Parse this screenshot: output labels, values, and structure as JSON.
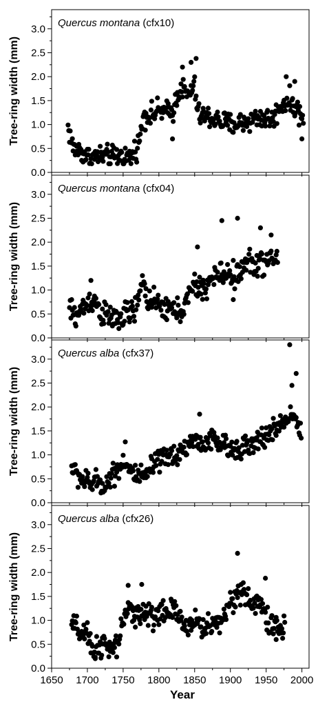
{
  "chart_data": {
    "type": "scatter",
    "layout": "vertical-stack",
    "xlabel": "Year",
    "xlim": [
      1650,
      2010
    ],
    "xticks": [
      1650,
      1700,
      1750,
      1800,
      1850,
      1900,
      1950,
      2000
    ],
    "ylabel": "Tree-ring width (mm)",
    "ylim": [
      0,
      3.4
    ],
    "yticks": [
      0.0,
      0.5,
      1.0,
      1.5,
      2.0,
      2.5,
      3.0
    ],
    "ytick_labels": [
      "0.0",
      "0.5",
      "1.0",
      "1.5",
      "2.0",
      "2.5",
      "3.0"
    ],
    "marker_color": "#000000",
    "grid": false,
    "panels": [
      {
        "species": "Quercus montana",
        "code": "(cfx10)",
        "first_year": 1673,
        "last_year": 2002,
        "segments": [
          [
            1673,
            0.95
          ],
          [
            1680,
            0.5
          ],
          [
            1690,
            0.45
          ],
          [
            1700,
            0.32
          ],
          [
            1710,
            0.32
          ],
          [
            1720,
            0.35
          ],
          [
            1730,
            0.32
          ],
          [
            1740,
            0.32
          ],
          [
            1750,
            0.35
          ],
          [
            1760,
            0.3
          ],
          [
            1770,
            0.55
          ],
          [
            1775,
            0.8
          ],
          [
            1778,
            1.2
          ],
          [
            1790,
            1.2
          ],
          [
            1800,
            1.3
          ],
          [
            1810,
            1.25
          ],
          [
            1820,
            1.3
          ],
          [
            1830,
            1.8
          ],
          [
            1840,
            1.6
          ],
          [
            1850,
            1.8
          ],
          [
            1855,
            1.2
          ],
          [
            1870,
            1.15
          ],
          [
            1890,
            1.05
          ],
          [
            1900,
            1.0
          ],
          [
            1920,
            1.05
          ],
          [
            1940,
            1.15
          ],
          [
            1960,
            1.1
          ],
          [
            1970,
            1.4
          ],
          [
            1980,
            1.5
          ],
          [
            1990,
            1.4
          ],
          [
            2002,
            1.1
          ]
        ],
        "spread": 0.18,
        "spikes": [
          [
            1833,
            2.2
          ],
          [
            1845,
            2.3
          ],
          [
            1852,
            2.38
          ],
          [
            1978,
            2.0
          ],
          [
            1990,
            1.9
          ],
          [
            2000,
            0.7
          ],
          [
            1819,
            0.7
          ]
        ]
      },
      {
        "species": "Quercus montana",
        "code": "(cfx04)",
        "first_year": 1675,
        "last_year": 1966,
        "segments": [
          [
            1675,
            0.6
          ],
          [
            1685,
            0.45
          ],
          [
            1695,
            0.65
          ],
          [
            1705,
            0.8
          ],
          [
            1712,
            0.75
          ],
          [
            1720,
            0.5
          ],
          [
            1728,
            0.45
          ],
          [
            1738,
            0.4
          ],
          [
            1748,
            0.4
          ],
          [
            1755,
            0.5
          ],
          [
            1765,
            0.55
          ],
          [
            1772,
            0.8
          ],
          [
            1778,
            1.2
          ],
          [
            1785,
            0.8
          ],
          [
            1800,
            0.65
          ],
          [
            1815,
            0.6
          ],
          [
            1830,
            0.55
          ],
          [
            1840,
            0.8
          ],
          [
            1850,
            1.1
          ],
          [
            1860,
            1.0
          ],
          [
            1880,
            1.3
          ],
          [
            1895,
            1.35
          ],
          [
            1910,
            1.3
          ],
          [
            1925,
            1.6
          ],
          [
            1940,
            1.55
          ],
          [
            1955,
            1.6
          ],
          [
            1966,
            1.7
          ]
        ],
        "spread": 0.2,
        "spikes": [
          [
            1854,
            1.9
          ],
          [
            1888,
            2.45
          ],
          [
            1910,
            2.5
          ],
          [
            1942,
            2.3
          ],
          [
            1957,
            2.15
          ],
          [
            1705,
            1.2
          ],
          [
            1904,
            0.8
          ]
        ]
      },
      {
        "species": "Quercus alba",
        "code": "(cfx37)",
        "first_year": 1678,
        "last_year": 1998,
        "segments": [
          [
            1678,
            0.75
          ],
          [
            1685,
            0.6
          ],
          [
            1695,
            0.45
          ],
          [
            1705,
            0.4
          ],
          [
            1715,
            0.45
          ],
          [
            1725,
            0.35
          ],
          [
            1735,
            0.6
          ],
          [
            1745,
            0.75
          ],
          [
            1752,
            0.9
          ],
          [
            1758,
            0.7
          ],
          [
            1768,
            0.55
          ],
          [
            1780,
            0.5
          ],
          [
            1790,
            0.75
          ],
          [
            1805,
            0.9
          ],
          [
            1820,
            1.0
          ],
          [
            1835,
            1.1
          ],
          [
            1845,
            1.3
          ],
          [
            1860,
            1.25
          ],
          [
            1875,
            1.3
          ],
          [
            1890,
            1.2
          ],
          [
            1900,
            1.1
          ],
          [
            1915,
            1.2
          ],
          [
            1930,
            1.15
          ],
          [
            1945,
            1.35
          ],
          [
            1960,
            1.5
          ],
          [
            1975,
            1.7
          ],
          [
            1988,
            1.9
          ],
          [
            1998,
            1.5
          ]
        ],
        "spread": 0.18,
        "spikes": [
          [
            1983,
            3.3
          ],
          [
            1992,
            2.7
          ],
          [
            1986,
            2.45
          ],
          [
            1857,
            1.85
          ],
          [
            1753,
            1.27
          ],
          [
            1999,
            1.35
          ]
        ]
      },
      {
        "species": "Quercus alba",
        "code": "(cfx26)",
        "first_year": 1678,
        "last_year": 1976,
        "segments": [
          [
            1678,
            0.9
          ],
          [
            1690,
            0.75
          ],
          [
            1700,
            0.65
          ],
          [
            1708,
            0.35
          ],
          [
            1715,
            0.5
          ],
          [
            1725,
            0.45
          ],
          [
            1735,
            0.35
          ],
          [
            1742,
            0.5
          ],
          [
            1750,
            1.0
          ],
          [
            1760,
            1.2
          ],
          [
            1775,
            1.15
          ],
          [
            1790,
            1.1
          ],
          [
            1805,
            1.15
          ],
          [
            1820,
            1.2
          ],
          [
            1835,
            0.9
          ],
          [
            1850,
            1.0
          ],
          [
            1860,
            0.85
          ],
          [
            1875,
            0.9
          ],
          [
            1890,
            1.05
          ],
          [
            1900,
            1.4
          ],
          [
            1910,
            1.6
          ],
          [
            1920,
            1.5
          ],
          [
            1930,
            1.35
          ],
          [
            1945,
            1.3
          ],
          [
            1955,
            0.9
          ],
          [
            1965,
            0.8
          ],
          [
            1976,
            0.9
          ]
        ],
        "spread": 0.2,
        "spikes": [
          [
            1910,
            2.4
          ],
          [
            1949,
            1.88
          ],
          [
            1757,
            1.73
          ],
          [
            1776,
            1.75
          ],
          [
            1711,
            0.2
          ],
          [
            1964,
            0.6
          ]
        ]
      }
    ]
  }
}
